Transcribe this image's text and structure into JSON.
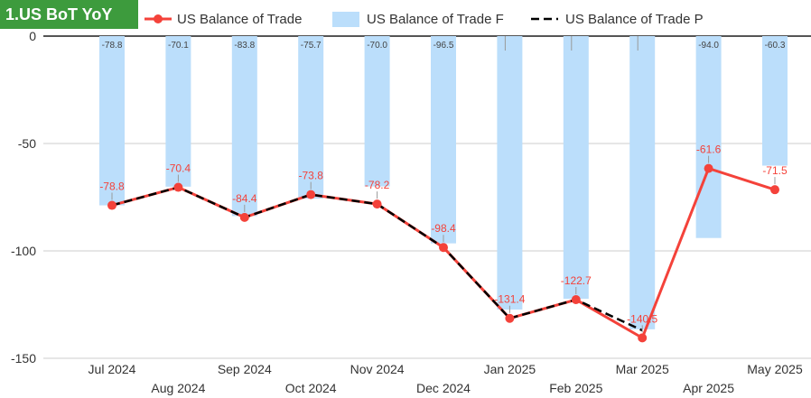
{
  "title": "1.US BoT YoY",
  "chart_data": {
    "type": "bar+line",
    "categories": [
      "Jul 2024",
      "Aug 2024",
      "Sep 2024",
      "Oct 2024",
      "Nov 2024",
      "Dec 2024",
      "Jan 2025",
      "Feb 2025",
      "Mar 2025",
      "Apr 2025",
      "May 2025"
    ],
    "series": [
      {
        "name": "US Balance of Trade",
        "type": "line",
        "color": "#f4423a",
        "values": [
          -78.8,
          -70.4,
          -84.4,
          -73.8,
          -78.2,
          -98.4,
          -131.4,
          -122.7,
          -140.5,
          -61.6,
          -71.5
        ],
        "labels": [
          "-78.8",
          "-70.4",
          "-84.4",
          "-73.8",
          "-78.2",
          "-98.4",
          "-131.4",
          "-122.7",
          "-140.5",
          "-61.6",
          "-71.5"
        ]
      },
      {
        "name": "US Balance of Trade F",
        "type": "bar",
        "color": "#bbdefb",
        "values": [
          -78.8,
          -70.1,
          -83.8,
          -75.7,
          -70.0,
          -96.5,
          -127.3,
          -122.3,
          -136.5,
          -94.0,
          -60.3
        ],
        "labels": [
          "-78.8",
          "-70.1",
          "-83.8",
          "-75.7",
          "-70.0",
          "-96.5",
          "",
          "",
          "",
          "-94.0",
          "-60.3"
        ]
      },
      {
        "name": "US Balance of Trade P",
        "type": "line-dashed",
        "color": "#000000",
        "values": [
          -78.8,
          -70.4,
          -84.4,
          -73.8,
          -78.2,
          -98.4,
          -131.4,
          -122.7,
          -137.0,
          null,
          null
        ]
      }
    ],
    "yticks": [
      0,
      -50,
      -100,
      -150
    ],
    "ylim": [
      -150,
      0
    ],
    "legend": "top"
  }
}
